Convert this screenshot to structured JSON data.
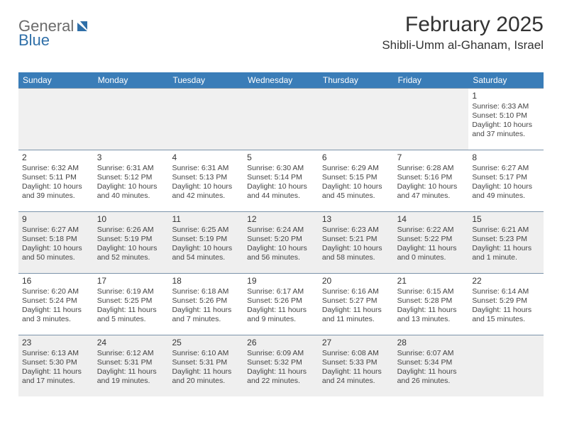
{
  "logo": {
    "word1": "General",
    "word2": "Blue"
  },
  "title": "February 2025",
  "location": "Shibli-Umm al-Ghanam, Israel",
  "colors": {
    "header_bg": "#3a7db8",
    "header_text": "#ffffff",
    "border": "#7b93aa",
    "shaded_bg": "#efefef",
    "page_bg": "#ffffff",
    "text": "#333333",
    "logo_gray": "#6b6b6b",
    "logo_blue": "#2f6fa8"
  },
  "fonts": {
    "title_size_pt": 22,
    "location_size_pt": 13,
    "dow_size_pt": 9,
    "daynum_size_pt": 9,
    "body_size_pt": 8
  },
  "dow": [
    "Sunday",
    "Monday",
    "Tuesday",
    "Wednesday",
    "Thursday",
    "Friday",
    "Saturday"
  ],
  "weeks": [
    {
      "shaded": false,
      "days": [
        null,
        null,
        null,
        null,
        null,
        null,
        {
          "n": "1",
          "sunrise": "Sunrise: 6:33 AM",
          "sunset": "Sunset: 5:10 PM",
          "daylight": "Daylight: 10 hours and 37 minutes."
        }
      ]
    },
    {
      "shaded": false,
      "days": [
        {
          "n": "2",
          "sunrise": "Sunrise: 6:32 AM",
          "sunset": "Sunset: 5:11 PM",
          "daylight": "Daylight: 10 hours and 39 minutes."
        },
        {
          "n": "3",
          "sunrise": "Sunrise: 6:31 AM",
          "sunset": "Sunset: 5:12 PM",
          "daylight": "Daylight: 10 hours and 40 minutes."
        },
        {
          "n": "4",
          "sunrise": "Sunrise: 6:31 AM",
          "sunset": "Sunset: 5:13 PM",
          "daylight": "Daylight: 10 hours and 42 minutes."
        },
        {
          "n": "5",
          "sunrise": "Sunrise: 6:30 AM",
          "sunset": "Sunset: 5:14 PM",
          "daylight": "Daylight: 10 hours and 44 minutes."
        },
        {
          "n": "6",
          "sunrise": "Sunrise: 6:29 AM",
          "sunset": "Sunset: 5:15 PM",
          "daylight": "Daylight: 10 hours and 45 minutes."
        },
        {
          "n": "7",
          "sunrise": "Sunrise: 6:28 AM",
          "sunset": "Sunset: 5:16 PM",
          "daylight": "Daylight: 10 hours and 47 minutes."
        },
        {
          "n": "8",
          "sunrise": "Sunrise: 6:27 AM",
          "sunset": "Sunset: 5:17 PM",
          "daylight": "Daylight: 10 hours and 49 minutes."
        }
      ]
    },
    {
      "shaded": true,
      "days": [
        {
          "n": "9",
          "sunrise": "Sunrise: 6:27 AM",
          "sunset": "Sunset: 5:18 PM",
          "daylight": "Daylight: 10 hours and 50 minutes."
        },
        {
          "n": "10",
          "sunrise": "Sunrise: 6:26 AM",
          "sunset": "Sunset: 5:19 PM",
          "daylight": "Daylight: 10 hours and 52 minutes."
        },
        {
          "n": "11",
          "sunrise": "Sunrise: 6:25 AM",
          "sunset": "Sunset: 5:19 PM",
          "daylight": "Daylight: 10 hours and 54 minutes."
        },
        {
          "n": "12",
          "sunrise": "Sunrise: 6:24 AM",
          "sunset": "Sunset: 5:20 PM",
          "daylight": "Daylight: 10 hours and 56 minutes."
        },
        {
          "n": "13",
          "sunrise": "Sunrise: 6:23 AM",
          "sunset": "Sunset: 5:21 PM",
          "daylight": "Daylight: 10 hours and 58 minutes."
        },
        {
          "n": "14",
          "sunrise": "Sunrise: 6:22 AM",
          "sunset": "Sunset: 5:22 PM",
          "daylight": "Daylight: 11 hours and 0 minutes."
        },
        {
          "n": "15",
          "sunrise": "Sunrise: 6:21 AM",
          "sunset": "Sunset: 5:23 PM",
          "daylight": "Daylight: 11 hours and 1 minute."
        }
      ]
    },
    {
      "shaded": false,
      "days": [
        {
          "n": "16",
          "sunrise": "Sunrise: 6:20 AM",
          "sunset": "Sunset: 5:24 PM",
          "daylight": "Daylight: 11 hours and 3 minutes."
        },
        {
          "n": "17",
          "sunrise": "Sunrise: 6:19 AM",
          "sunset": "Sunset: 5:25 PM",
          "daylight": "Daylight: 11 hours and 5 minutes."
        },
        {
          "n": "18",
          "sunrise": "Sunrise: 6:18 AM",
          "sunset": "Sunset: 5:26 PM",
          "daylight": "Daylight: 11 hours and 7 minutes."
        },
        {
          "n": "19",
          "sunrise": "Sunrise: 6:17 AM",
          "sunset": "Sunset: 5:26 PM",
          "daylight": "Daylight: 11 hours and 9 minutes."
        },
        {
          "n": "20",
          "sunrise": "Sunrise: 6:16 AM",
          "sunset": "Sunset: 5:27 PM",
          "daylight": "Daylight: 11 hours and 11 minutes."
        },
        {
          "n": "21",
          "sunrise": "Sunrise: 6:15 AM",
          "sunset": "Sunset: 5:28 PM",
          "daylight": "Daylight: 11 hours and 13 minutes."
        },
        {
          "n": "22",
          "sunrise": "Sunrise: 6:14 AM",
          "sunset": "Sunset: 5:29 PM",
          "daylight": "Daylight: 11 hours and 15 minutes."
        }
      ]
    },
    {
      "shaded": true,
      "days": [
        {
          "n": "23",
          "sunrise": "Sunrise: 6:13 AM",
          "sunset": "Sunset: 5:30 PM",
          "daylight": "Daylight: 11 hours and 17 minutes."
        },
        {
          "n": "24",
          "sunrise": "Sunrise: 6:12 AM",
          "sunset": "Sunset: 5:31 PM",
          "daylight": "Daylight: 11 hours and 19 minutes."
        },
        {
          "n": "25",
          "sunrise": "Sunrise: 6:10 AM",
          "sunset": "Sunset: 5:31 PM",
          "daylight": "Daylight: 11 hours and 20 minutes."
        },
        {
          "n": "26",
          "sunrise": "Sunrise: 6:09 AM",
          "sunset": "Sunset: 5:32 PM",
          "daylight": "Daylight: 11 hours and 22 minutes."
        },
        {
          "n": "27",
          "sunrise": "Sunrise: 6:08 AM",
          "sunset": "Sunset: 5:33 PM",
          "daylight": "Daylight: 11 hours and 24 minutes."
        },
        {
          "n": "28",
          "sunrise": "Sunrise: 6:07 AM",
          "sunset": "Sunset: 5:34 PM",
          "daylight": "Daylight: 11 hours and 26 minutes."
        },
        null
      ]
    }
  ]
}
